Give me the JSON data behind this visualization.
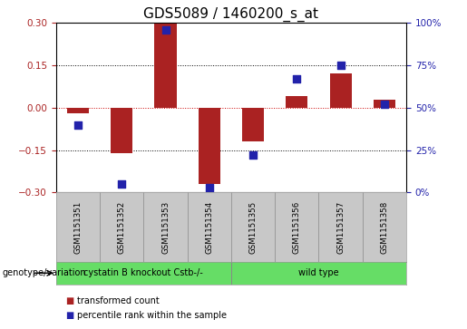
{
  "title": "GDS5089 / 1460200_s_at",
  "samples": [
    "GSM1151351",
    "GSM1151352",
    "GSM1151353",
    "GSM1151354",
    "GSM1151355",
    "GSM1151356",
    "GSM1151357",
    "GSM1151358"
  ],
  "transformed_count": [
    -0.02,
    -0.16,
    0.3,
    -0.27,
    -0.12,
    0.04,
    0.12,
    0.03
  ],
  "percentile_rank": [
    40,
    5,
    96,
    3,
    22,
    67,
    75,
    52
  ],
  "ylim_left": [
    -0.3,
    0.3
  ],
  "ylim_right": [
    0,
    100
  ],
  "yticks_left": [
    -0.3,
    -0.15,
    0,
    0.15,
    0.3
  ],
  "yticks_right": [
    0,
    25,
    50,
    75,
    100
  ],
  "bar_color": "#AA2222",
  "dot_color": "#2222AA",
  "group1_label": "cystatin B knockout Cstb-/-",
  "group1_samples": [
    0,
    1,
    2,
    3
  ],
  "group2_label": "wild type",
  "group2_samples": [
    4,
    5,
    6,
    7
  ],
  "group_color": "#66DD66",
  "genotype_label": "genotype/variation",
  "legend_bar": "transformed count",
  "legend_dot": "percentile rank within the sample",
  "sample_bg_color": "#C8C8C8",
  "plot_bg_color": "#FFFFFF",
  "grid_color": "#000000",
  "zero_line_color": "#CC0000",
  "bar_width": 0.5,
  "dot_size": 28,
  "title_fontsize": 11,
  "tick_fontsize": 7.5,
  "label_fontsize": 8
}
